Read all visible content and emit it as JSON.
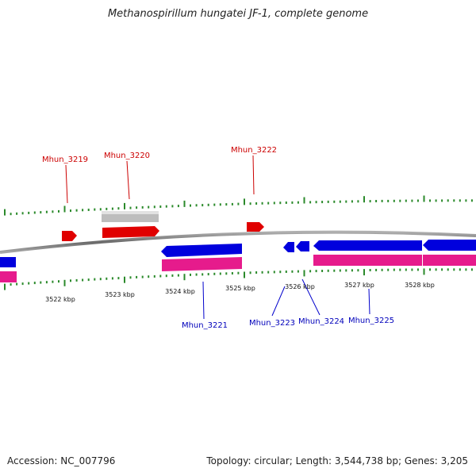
{
  "title": "Methanospirillum hungatei JF-1, complete genome",
  "footer": {
    "accession": "Accession: NC_007796",
    "summary": "Topology: circular; Length: 3,544,738 bp; Genes: 3,205"
  },
  "colors": {
    "forward_gene": "#e00000",
    "reverse_gene": "#0000dd",
    "forward_cds_pseudo": "#bdbdbd",
    "reverse_cds": "#e61b8c",
    "tick": "#2b8a2b",
    "backbone": "#808080"
  },
  "gene_labels_top": [
    "Mhun_3219",
    "Mhun_3220",
    "Mhun_3222"
  ],
  "gene_labels_bottom": [
    "Mhun_3221",
    "Mhun_3223",
    "Mhun_3224",
    "Mhun_3225"
  ],
  "kbp_labels": [
    "3522 kbp",
    "3523 kbp",
    "3524 kbp",
    "3525 kbp",
    "3526 kbp",
    "3527 kbp",
    "3528 kbp"
  ]
}
